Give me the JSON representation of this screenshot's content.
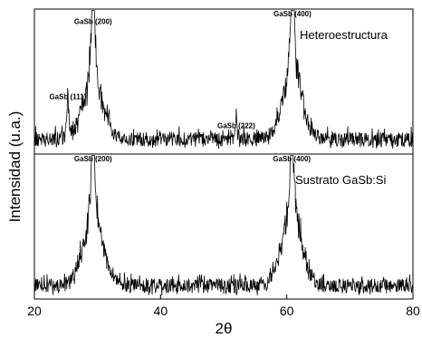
{
  "chart_data": {
    "type": "line",
    "xlabel": "2θ",
    "ylabel": "Intensidad (u.a.)",
    "xlim": [
      20,
      80
    ],
    "xticks": [
      "20",
      "40",
      "60",
      "80"
    ],
    "y_ticks_shown": false,
    "grid": false,
    "panels": [
      {
        "series_name": "Heteroestructura",
        "ylim": [
          0,
          1
        ],
        "baseline": 0.08,
        "noise": 0.1,
        "peaks": [
          {
            "label": "GaSb (111)",
            "x": 25.3,
            "height": 0.34,
            "width": 0.12,
            "shoulder": 0.0
          },
          {
            "label": "GaSb (200)",
            "x": 29.3,
            "height": 0.86,
            "width": 0.3,
            "shoulder": 0.35
          },
          {
            "label": "GaSb (222)",
            "x": 52.0,
            "height": 0.14,
            "width": 0.15,
            "shoulder": 0.0
          },
          {
            "label": "GaSb (400)",
            "x": 60.9,
            "height": 0.95,
            "width": 0.3,
            "shoulder": 0.38
          }
        ]
      },
      {
        "series_name": "Sustrato GaSb:Si",
        "ylim": [
          0,
          1
        ],
        "baseline": 0.07,
        "noise": 0.1,
        "peaks": [
          {
            "label": "GaSb (200)",
            "x": 29.3,
            "height": 0.97,
            "width": 0.25,
            "shoulder": 0.42
          },
          {
            "label": "GaSb (400)",
            "x": 60.8,
            "height": 0.97,
            "width": 0.25,
            "shoulder": 0.45
          }
        ]
      }
    ]
  }
}
